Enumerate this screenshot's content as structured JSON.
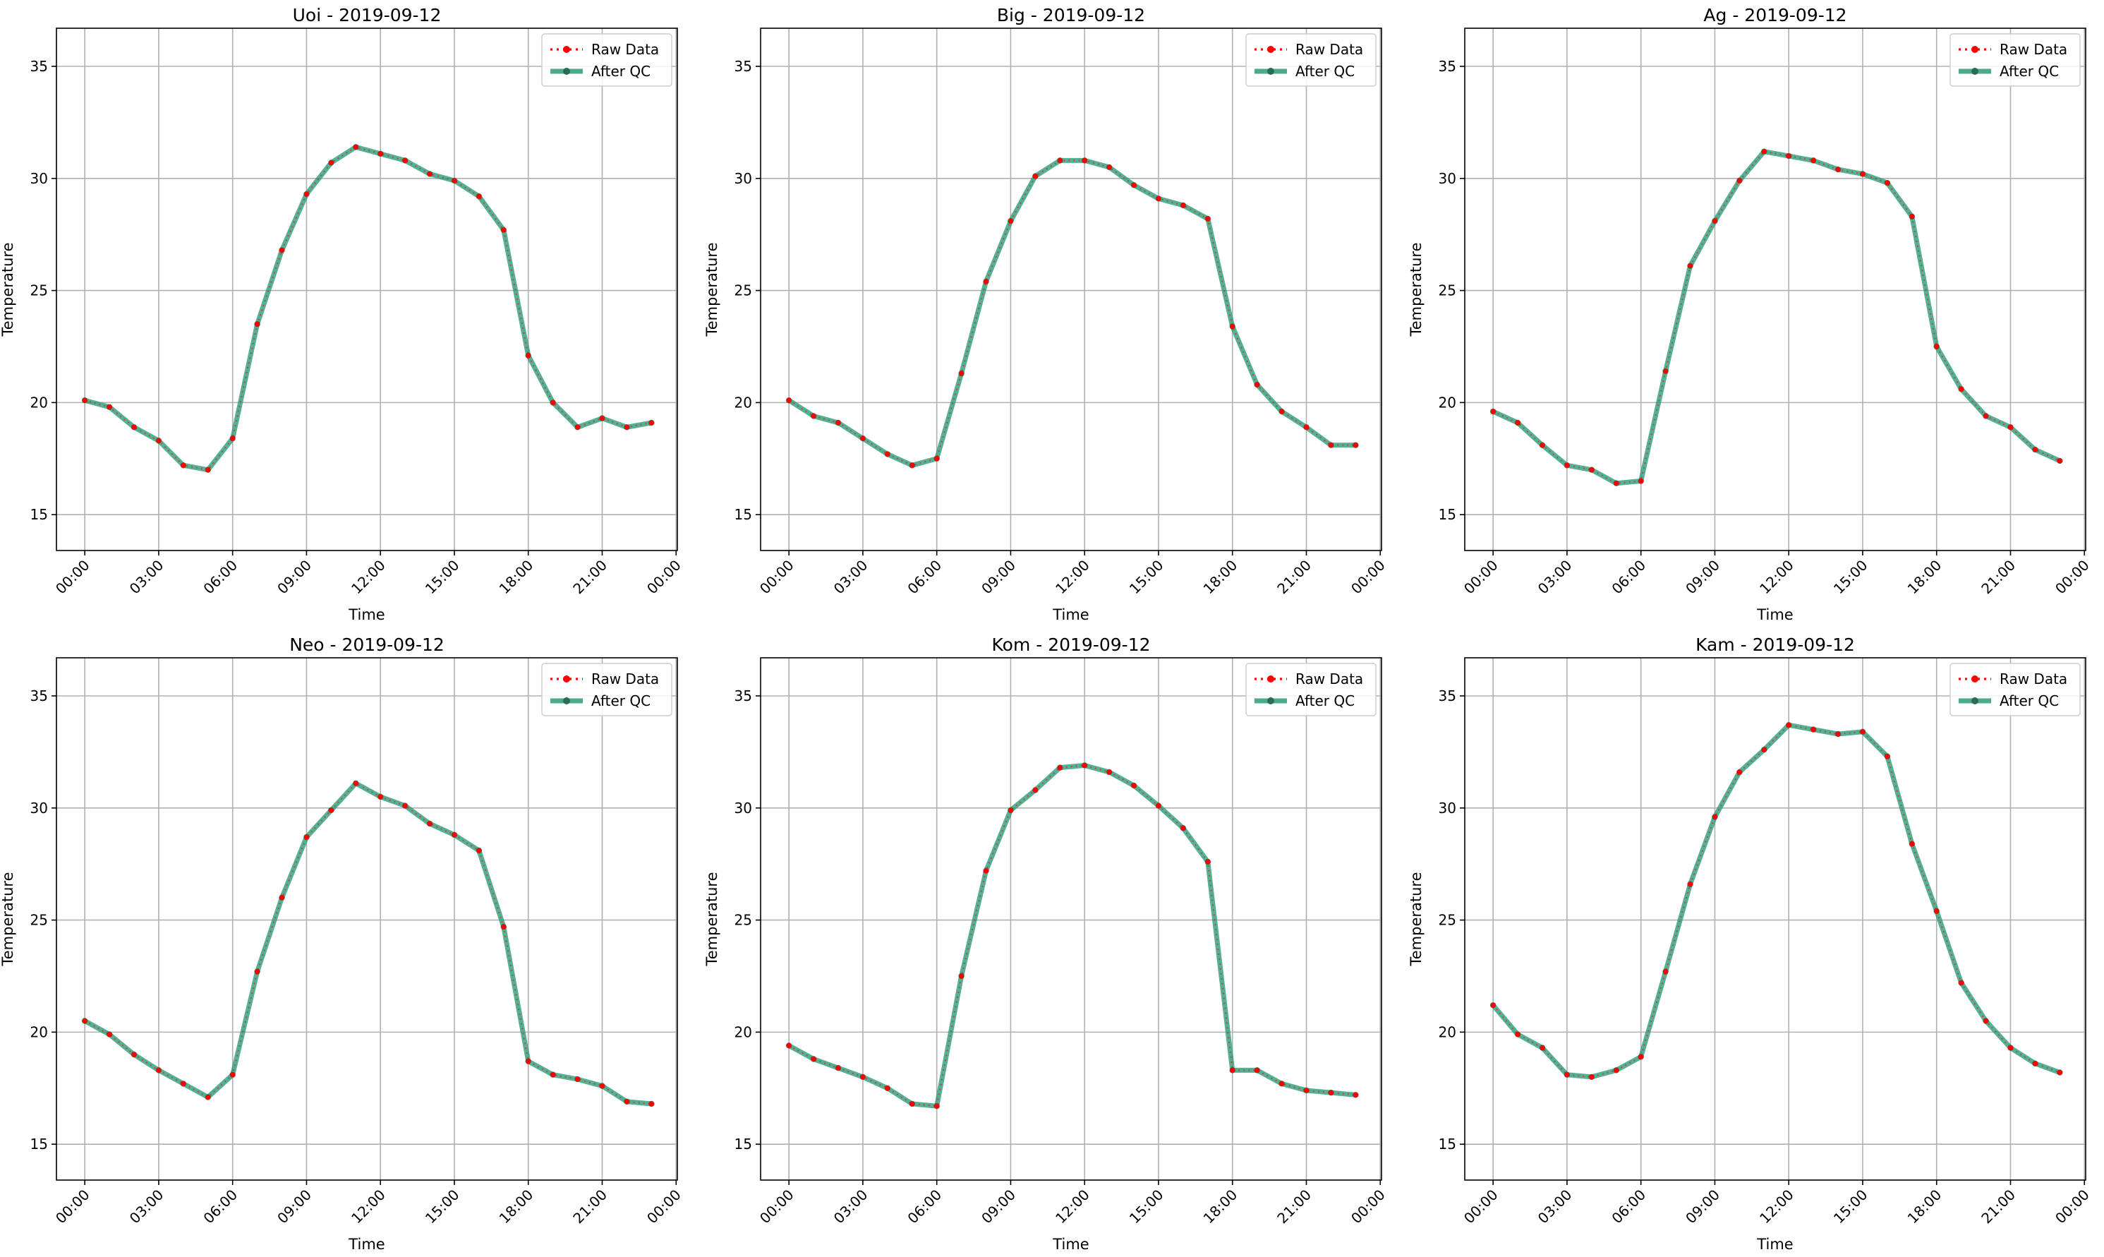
{
  "figure": {
    "colors": {
      "raw": "#ff0000",
      "qc": "#2a9d78",
      "qc_marker": "#2b6b5a",
      "grid": "#b0b0b0",
      "axes": "#000000"
    },
    "legend": {
      "raw_label": "Raw Data",
      "qc_label": "After QC",
      "placement": "top-right"
    }
  },
  "chart_data": [
    {
      "type": "line",
      "title": "Uoi - 2019-09-12",
      "xlabel": "Time",
      "ylabel": "Temperature",
      "ylim": [
        13.4,
        36.7
      ],
      "xlim": [
        "2019-09-12T00:00",
        "2019-09-13T00:00"
      ],
      "yticks": [
        15,
        20,
        25,
        30,
        35
      ],
      "xtick_labels": [
        "00:00",
        "03:00",
        "06:00",
        "09:00",
        "12:00",
        "15:00",
        "18:00",
        "21:00",
        "00:00"
      ],
      "grid": true,
      "x": [
        "00:00",
        "01:00",
        "02:00",
        "03:00",
        "04:00",
        "05:00",
        "06:00",
        "07:00",
        "08:00",
        "09:00",
        "10:00",
        "11:00",
        "12:00",
        "13:00",
        "14:00",
        "15:00",
        "16:00",
        "17:00",
        "18:00",
        "19:00",
        "20:00",
        "21:00",
        "22:00",
        "23:00"
      ],
      "series": [
        {
          "name": "Raw Data",
          "values": [
            20.1,
            19.8,
            18.9,
            18.3,
            17.2,
            17.0,
            18.4,
            23.5,
            26.8,
            29.3,
            30.7,
            31.4,
            31.1,
            30.8,
            30.2,
            29.9,
            29.2,
            27.7,
            22.1,
            20.0,
            18.9,
            19.3,
            18.9,
            19.1
          ]
        },
        {
          "name": "After QC",
          "values": [
            20.1,
            19.8,
            18.9,
            18.3,
            17.2,
            17.0,
            18.4,
            23.5,
            26.8,
            29.3,
            30.7,
            31.4,
            31.1,
            30.8,
            30.2,
            29.9,
            29.2,
            27.7,
            22.1,
            20.0,
            18.9,
            19.3,
            18.9,
            19.1
          ]
        }
      ]
    },
    {
      "type": "line",
      "title": "Big - 2019-09-12",
      "xlabel": "Time",
      "ylabel": "Temperature",
      "ylim": [
        13.4,
        36.7
      ],
      "xlim": [
        "2019-09-12T00:00",
        "2019-09-13T00:00"
      ],
      "yticks": [
        15,
        20,
        25,
        30,
        35
      ],
      "xtick_labels": [
        "00:00",
        "03:00",
        "06:00",
        "09:00",
        "12:00",
        "15:00",
        "18:00",
        "21:00",
        "00:00"
      ],
      "grid": true,
      "x": [
        "00:00",
        "01:00",
        "02:00",
        "03:00",
        "04:00",
        "05:00",
        "06:00",
        "07:00",
        "08:00",
        "09:00",
        "10:00",
        "11:00",
        "12:00",
        "13:00",
        "14:00",
        "15:00",
        "16:00",
        "17:00",
        "18:00",
        "19:00",
        "20:00",
        "21:00",
        "22:00",
        "23:00"
      ],
      "series": [
        {
          "name": "Raw Data",
          "values": [
            20.1,
            19.4,
            19.1,
            18.4,
            17.7,
            17.2,
            17.5,
            21.3,
            25.4,
            28.1,
            30.1,
            30.8,
            30.8,
            30.5,
            29.7,
            29.1,
            28.8,
            28.2,
            23.4,
            20.8,
            19.6,
            18.9,
            18.1,
            18.1
          ]
        },
        {
          "name": "After QC",
          "values": [
            20.1,
            19.4,
            19.1,
            18.4,
            17.7,
            17.2,
            17.5,
            21.3,
            25.4,
            28.1,
            30.1,
            30.8,
            30.8,
            30.5,
            29.7,
            29.1,
            28.8,
            28.2,
            23.4,
            20.8,
            19.6,
            18.9,
            18.1,
            18.1
          ]
        }
      ]
    },
    {
      "type": "line",
      "title": "Ag - 2019-09-12",
      "xlabel": "Time",
      "ylabel": "Temperature",
      "ylim": [
        13.4,
        36.7
      ],
      "xlim": [
        "2019-09-12T00:00",
        "2019-09-13T00:00"
      ],
      "yticks": [
        15,
        20,
        25,
        30,
        35
      ],
      "xtick_labels": [
        "00:00",
        "03:00",
        "06:00",
        "09:00",
        "12:00",
        "15:00",
        "18:00",
        "21:00",
        "00:00"
      ],
      "grid": true,
      "x": [
        "00:00",
        "01:00",
        "02:00",
        "03:00",
        "04:00",
        "05:00",
        "06:00",
        "07:00",
        "08:00",
        "09:00",
        "10:00",
        "11:00",
        "12:00",
        "13:00",
        "14:00",
        "15:00",
        "16:00",
        "17:00",
        "18:00",
        "19:00",
        "20:00",
        "21:00",
        "22:00",
        "23:00"
      ],
      "series": [
        {
          "name": "Raw Data",
          "values": [
            19.6,
            19.1,
            18.1,
            17.2,
            17.0,
            16.4,
            16.5,
            21.4,
            26.1,
            28.1,
            29.9,
            31.2,
            31.0,
            30.8,
            30.4,
            30.2,
            29.8,
            28.3,
            22.5,
            20.6,
            19.4,
            18.9,
            17.9,
            17.4
          ]
        },
        {
          "name": "After QC",
          "values": [
            19.6,
            19.1,
            18.1,
            17.2,
            17.0,
            16.4,
            16.5,
            21.4,
            26.1,
            28.1,
            29.9,
            31.2,
            31.0,
            30.8,
            30.4,
            30.2,
            29.8,
            28.3,
            22.5,
            20.6,
            19.4,
            18.9,
            17.9,
            17.4
          ]
        }
      ]
    },
    {
      "type": "line",
      "title": "Neo - 2019-09-12",
      "xlabel": "Time",
      "ylabel": "Temperature",
      "ylim": [
        13.4,
        36.7
      ],
      "xlim": [
        "2019-09-12T00:00",
        "2019-09-13T00:00"
      ],
      "yticks": [
        15,
        20,
        25,
        30,
        35
      ],
      "xtick_labels": [
        "00:00",
        "03:00",
        "06:00",
        "09:00",
        "12:00",
        "15:00",
        "18:00",
        "21:00",
        "00:00"
      ],
      "grid": true,
      "x": [
        "00:00",
        "01:00",
        "02:00",
        "03:00",
        "04:00",
        "05:00",
        "06:00",
        "07:00",
        "08:00",
        "09:00",
        "10:00",
        "11:00",
        "12:00",
        "13:00",
        "14:00",
        "15:00",
        "16:00",
        "17:00",
        "18:00",
        "19:00",
        "20:00",
        "21:00",
        "22:00",
        "23:00"
      ],
      "series": [
        {
          "name": "Raw Data",
          "values": [
            20.5,
            19.9,
            19.0,
            18.3,
            17.7,
            17.1,
            18.1,
            22.7,
            26.0,
            28.7,
            29.9,
            31.1,
            30.5,
            30.1,
            29.3,
            28.8,
            28.1,
            24.7,
            18.7,
            18.1,
            17.9,
            17.6,
            16.9,
            16.8
          ]
        },
        {
          "name": "After QC",
          "values": [
            20.5,
            19.9,
            19.0,
            18.3,
            17.7,
            17.1,
            18.1,
            22.7,
            26.0,
            28.7,
            29.9,
            31.1,
            30.5,
            30.1,
            29.3,
            28.8,
            28.1,
            24.7,
            18.7,
            18.1,
            17.9,
            17.6,
            16.9,
            16.8
          ]
        }
      ]
    },
    {
      "type": "line",
      "title": "Kom - 2019-09-12",
      "xlabel": "Time",
      "ylabel": "Temperature",
      "ylim": [
        13.4,
        36.7
      ],
      "xlim": [
        "2019-09-12T00:00",
        "2019-09-13T00:00"
      ],
      "yticks": [
        15,
        20,
        25,
        30,
        35
      ],
      "xtick_labels": [
        "00:00",
        "03:00",
        "06:00",
        "09:00",
        "12:00",
        "15:00",
        "18:00",
        "21:00",
        "00:00"
      ],
      "grid": true,
      "x": [
        "00:00",
        "01:00",
        "02:00",
        "03:00",
        "04:00",
        "05:00",
        "06:00",
        "07:00",
        "08:00",
        "09:00",
        "10:00",
        "11:00",
        "12:00",
        "13:00",
        "14:00",
        "15:00",
        "16:00",
        "17:00",
        "18:00",
        "19:00",
        "20:00",
        "21:00",
        "22:00",
        "23:00"
      ],
      "series": [
        {
          "name": "Raw Data",
          "values": [
            19.4,
            18.8,
            18.4,
            18.0,
            17.5,
            16.8,
            16.7,
            22.5,
            27.2,
            29.9,
            30.8,
            31.8,
            31.9,
            31.6,
            31.0,
            30.1,
            29.1,
            27.6,
            18.3,
            18.3,
            17.7,
            17.4,
            17.3,
            17.2
          ]
        },
        {
          "name": "After QC",
          "values": [
            19.4,
            18.8,
            18.4,
            18.0,
            17.5,
            16.8,
            16.7,
            22.5,
            27.2,
            29.9,
            30.8,
            31.8,
            31.9,
            31.6,
            31.0,
            30.1,
            29.1,
            27.6,
            18.3,
            18.3,
            17.7,
            17.4,
            17.3,
            17.2
          ]
        }
      ]
    },
    {
      "type": "line",
      "title": "Kam - 2019-09-12",
      "xlabel": "Time",
      "ylabel": "Temperature",
      "ylim": [
        13.4,
        36.7
      ],
      "xlim": [
        "2019-09-12T00:00",
        "2019-09-13T00:00"
      ],
      "yticks": [
        15,
        20,
        25,
        30,
        35
      ],
      "xtick_labels": [
        "00:00",
        "03:00",
        "06:00",
        "09:00",
        "12:00",
        "15:00",
        "18:00",
        "21:00",
        "00:00"
      ],
      "grid": true,
      "x": [
        "00:00",
        "01:00",
        "02:00",
        "03:00",
        "04:00",
        "05:00",
        "06:00",
        "07:00",
        "08:00",
        "09:00",
        "10:00",
        "11:00",
        "12:00",
        "13:00",
        "14:00",
        "15:00",
        "16:00",
        "17:00",
        "18:00",
        "19:00",
        "20:00",
        "21:00",
        "22:00",
        "23:00"
      ],
      "series": [
        {
          "name": "Raw Data",
          "values": [
            21.2,
            19.9,
            19.3,
            18.1,
            18.0,
            18.3,
            18.9,
            22.7,
            26.6,
            29.6,
            31.6,
            32.6,
            33.7,
            33.5,
            33.3,
            33.4,
            32.3,
            28.4,
            25.4,
            22.2,
            20.5,
            19.3,
            18.6,
            18.2
          ]
        },
        {
          "name": "After QC",
          "values": [
            21.2,
            19.9,
            19.3,
            18.1,
            18.0,
            18.3,
            18.9,
            22.7,
            26.6,
            29.6,
            31.6,
            32.6,
            33.7,
            33.5,
            33.3,
            33.4,
            32.3,
            28.4,
            25.4,
            22.2,
            20.5,
            19.3,
            18.6,
            18.2
          ]
        }
      ]
    }
  ]
}
